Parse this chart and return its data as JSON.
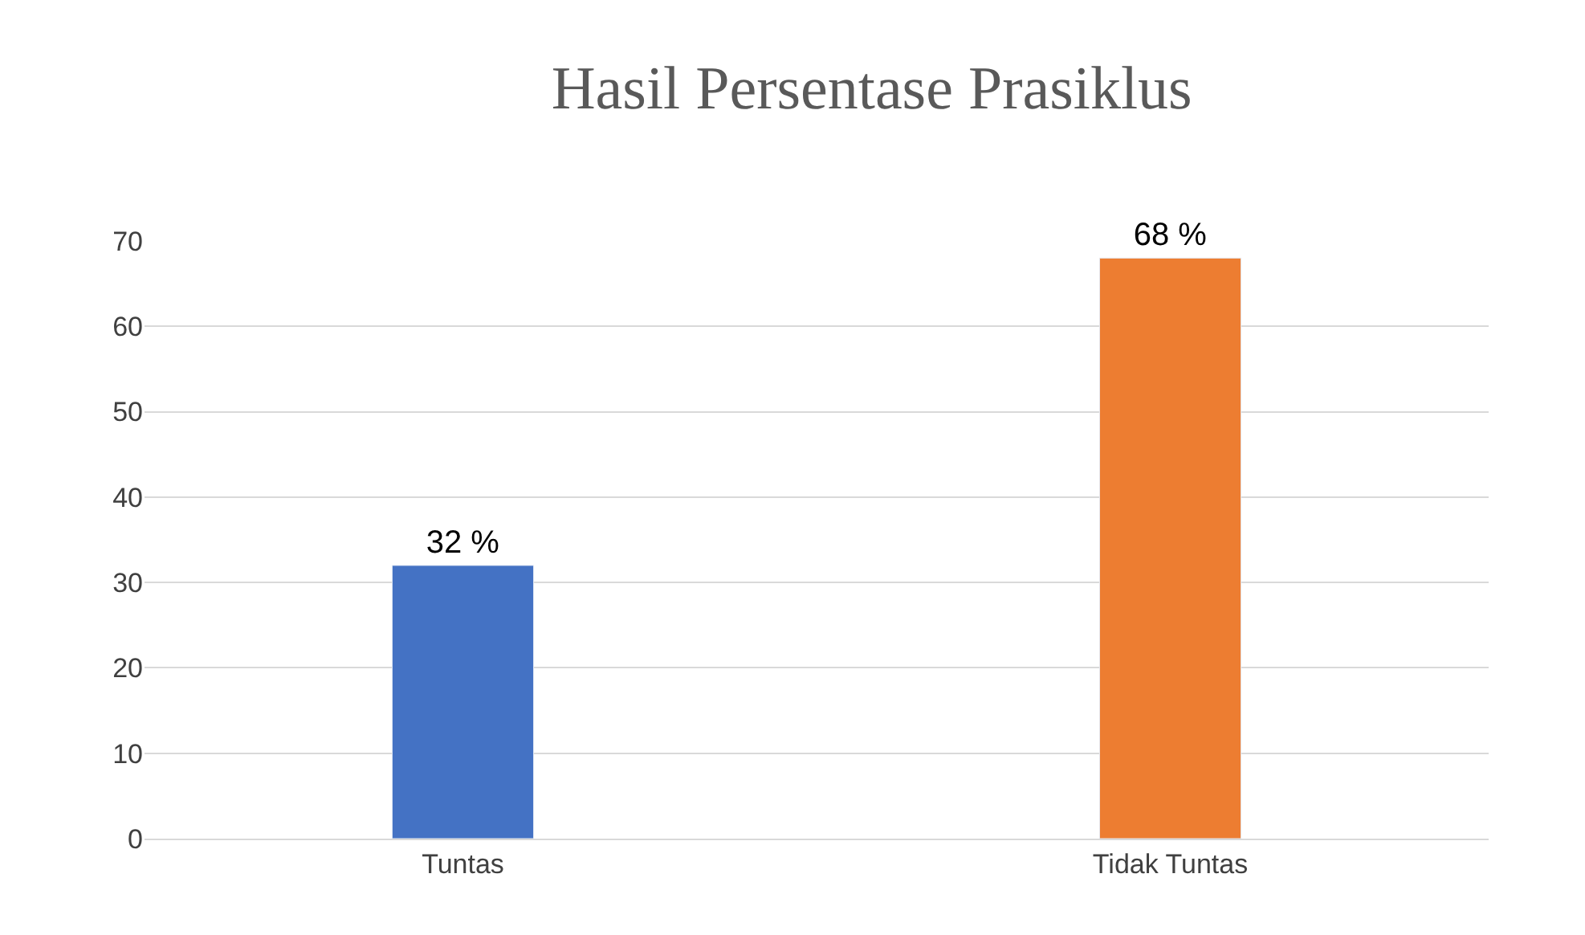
{
  "chart_data": {
    "type": "bar",
    "title": "Hasil Persentase Prasiklus",
    "categories": [
      "Tuntas",
      "Tidak Tuntas"
    ],
    "values": [
      32,
      68
    ],
    "colors": [
      "#4472c4",
      "#ed7d31"
    ],
    "value_labels": [
      "32 %",
      "68 %"
    ],
    "ylim": [
      0,
      70
    ],
    "yticks": [
      0,
      10,
      20,
      30,
      40,
      50,
      60,
      70
    ],
    "grid": "y"
  }
}
